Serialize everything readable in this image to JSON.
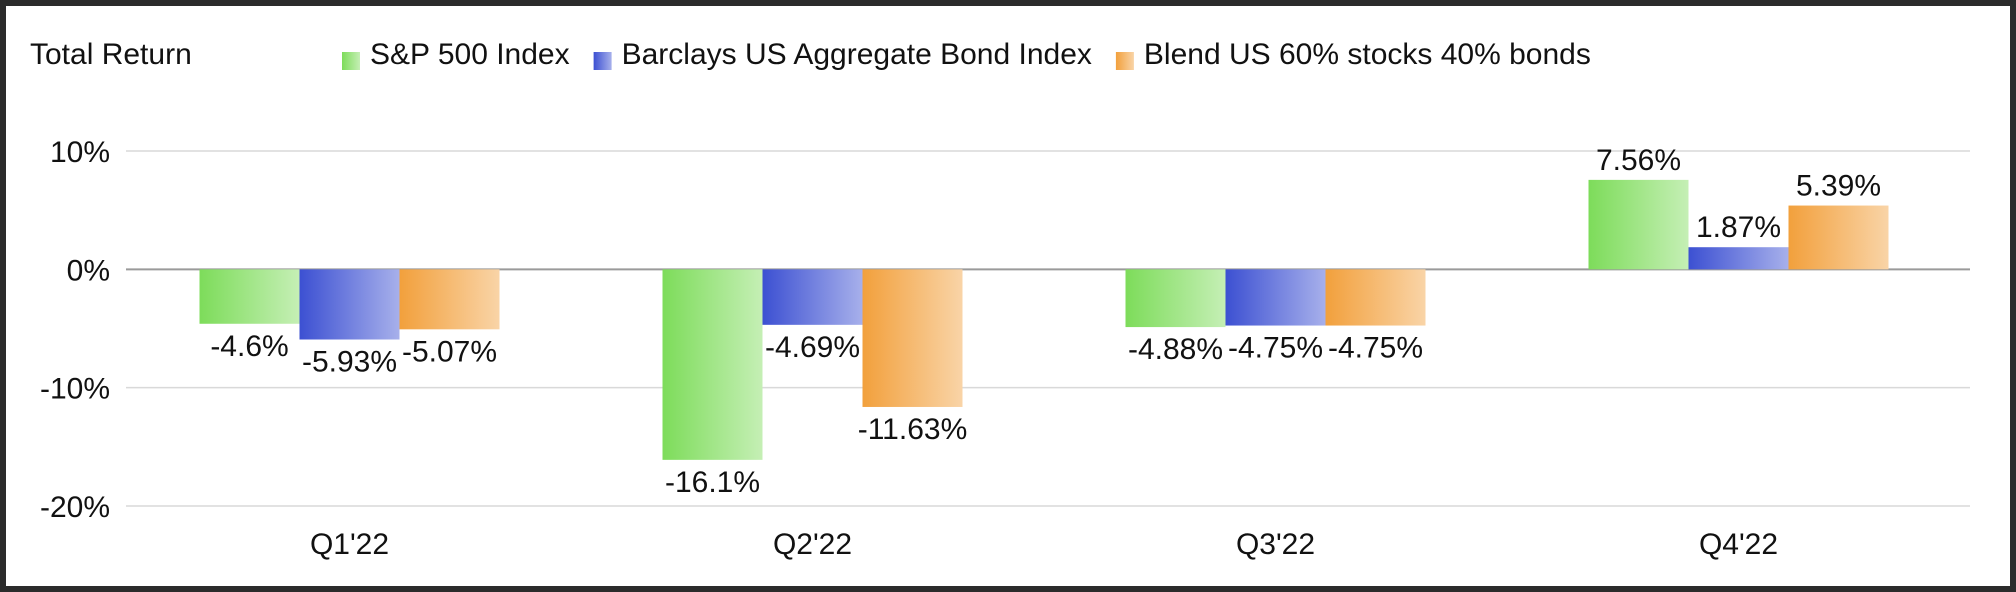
{
  "chart_data": {
    "type": "bar",
    "title": "Total Return",
    "categories": [
      "Q1'22",
      "Q2'22",
      "Q3'22",
      "Q4'22"
    ],
    "series": [
      {
        "name": "S&P 500 Index",
        "values": [
          -4.6,
          -16.1,
          -4.88,
          7.56
        ],
        "labels": [
          "-4.6%",
          "-16.1%",
          "-4.88%",
          "7.56%"
        ],
        "color": "#7ddc5a"
      },
      {
        "name": "Barclays US Aggregate Bond Index",
        "values": [
          -5.93,
          -4.69,
          -4.75,
          1.87
        ],
        "labels": [
          "-5.93%",
          "-4.69%",
          "-4.75%",
          "1.87%"
        ],
        "color": "#3c50d2"
      },
      {
        "name": "Blend US 60% stocks 40% bonds",
        "values": [
          -5.07,
          -11.63,
          -4.75,
          5.39
        ],
        "labels": [
          "-5.07%",
          "-11.63%",
          "-4.75%",
          "5.39%"
        ],
        "color": "#f2a03c"
      }
    ],
    "yticks": [
      10,
      0,
      -10,
      -20
    ],
    "ytick_labels": [
      "10%",
      "0%",
      "-10%",
      "-20%"
    ],
    "ylim": [
      -20,
      10
    ],
    "grid": true,
    "legend_position": "top"
  }
}
